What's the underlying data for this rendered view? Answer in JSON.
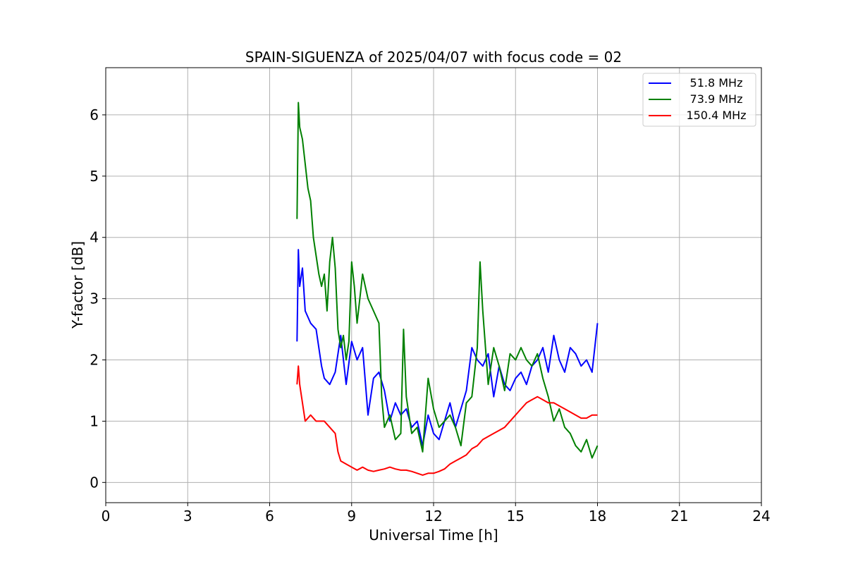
{
  "chart_data": {
    "type": "line",
    "title": "SPAIN-SIGUENZA of 2025/04/07 with focus code = 02",
    "xlabel": "Universal Time [h]",
    "ylabel": "Y-factor [dB]",
    "xlim": [
      0,
      24
    ],
    "ylim": [
      -0.33,
      6.77
    ],
    "xticks": [
      "0",
      "3",
      "6",
      "9",
      "12",
      "15",
      "18",
      "21",
      "24"
    ],
    "yticks": [
      "0",
      "1",
      "2",
      "3",
      "4",
      "5",
      "6"
    ],
    "grid": true,
    "legend_position": "top-right",
    "series": [
      {
        "name": "51.8 MHz",
        "color": "#0000ff",
        "x": [
          7.0,
          7.05,
          7.1,
          7.2,
          7.3,
          7.5,
          7.7,
          7.9,
          8.0,
          8.2,
          8.4,
          8.6,
          8.8,
          9.0,
          9.2,
          9.4,
          9.6,
          9.8,
          10.0,
          10.2,
          10.4,
          10.6,
          10.8,
          11.0,
          11.2,
          11.4,
          11.6,
          11.8,
          12.0,
          12.2,
          12.4,
          12.6,
          12.8,
          13.0,
          13.2,
          13.4,
          13.6,
          13.8,
          14.0,
          14.2,
          14.4,
          14.6,
          14.8,
          15.0,
          15.2,
          15.4,
          15.6,
          15.8,
          16.0,
          16.2,
          16.4,
          16.6,
          16.8,
          17.0,
          17.2,
          17.4,
          17.6,
          17.8,
          18.0
        ],
        "y": [
          2.3,
          3.8,
          3.2,
          3.5,
          2.8,
          2.6,
          2.5,
          1.9,
          1.7,
          1.6,
          1.8,
          2.4,
          1.6,
          2.3,
          2.0,
          2.2,
          1.1,
          1.7,
          1.8,
          1.5,
          1.0,
          1.3,
          1.1,
          1.2,
          0.9,
          1.0,
          0.6,
          1.1,
          0.8,
          0.7,
          1.0,
          1.3,
          0.9,
          1.2,
          1.5,
          2.2,
          2.0,
          1.9,
          2.1,
          1.4,
          1.9,
          1.6,
          1.5,
          1.7,
          1.8,
          1.6,
          1.9,
          2.0,
          2.2,
          1.8,
          2.4,
          2.0,
          1.8,
          2.2,
          2.1,
          1.9,
          2.0,
          1.8,
          2.6
        ]
      },
      {
        "name": "73.9 MHz",
        "color": "#008000",
        "x": [
          7.0,
          7.05,
          7.1,
          7.2,
          7.3,
          7.4,
          7.5,
          7.6,
          7.7,
          7.8,
          7.9,
          8.0,
          8.1,
          8.2,
          8.3,
          8.4,
          8.5,
          8.6,
          8.7,
          8.8,
          8.9,
          9.0,
          9.1,
          9.2,
          9.3,
          9.4,
          9.5,
          9.6,
          9.8,
          10.0,
          10.1,
          10.2,
          10.4,
          10.6,
          10.8,
          10.9,
          11.0,
          11.2,
          11.4,
          11.6,
          11.7,
          11.8,
          12.0,
          12.2,
          12.4,
          12.6,
          12.8,
          13.0,
          13.2,
          13.4,
          13.6,
          13.7,
          13.8,
          14.0,
          14.2,
          14.4,
          14.6,
          14.8,
          15.0,
          15.2,
          15.4,
          15.6,
          15.8,
          16.0,
          16.2,
          16.4,
          16.6,
          16.8,
          17.0,
          17.2,
          17.4,
          17.6,
          17.8,
          18.0
        ],
        "y": [
          4.3,
          6.2,
          5.8,
          5.6,
          5.2,
          4.8,
          4.6,
          4.0,
          3.7,
          3.4,
          3.2,
          3.4,
          2.8,
          3.6,
          4.0,
          3.5,
          2.5,
          2.2,
          2.4,
          2.0,
          2.3,
          3.6,
          3.2,
          2.6,
          3.0,
          3.4,
          3.2,
          3.0,
          2.8,
          2.6,
          1.4,
          0.9,
          1.1,
          0.7,
          0.8,
          2.5,
          1.4,
          0.8,
          0.9,
          0.5,
          1.1,
          1.7,
          1.2,
          0.9,
          1.0,
          1.1,
          0.9,
          0.6,
          1.3,
          1.4,
          2.2,
          3.6,
          2.8,
          1.6,
          2.2,
          1.9,
          1.5,
          2.1,
          2.0,
          2.2,
          2.0,
          1.9,
          2.1,
          1.7,
          1.4,
          1.0,
          1.2,
          0.9,
          0.8,
          0.6,
          0.5,
          0.7,
          0.4,
          0.6
        ]
      },
      {
        "name": "150.4 MHz",
        "color": "#ff0000",
        "x": [
          7.0,
          7.05,
          7.1,
          7.2,
          7.3,
          7.5,
          7.7,
          7.9,
          8.0,
          8.2,
          8.4,
          8.5,
          8.6,
          8.8,
          9.0,
          9.2,
          9.4,
          9.6,
          9.8,
          10.0,
          10.2,
          10.4,
          10.6,
          10.8,
          11.0,
          11.2,
          11.4,
          11.6,
          11.8,
          12.0,
          12.2,
          12.4,
          12.6,
          12.8,
          13.0,
          13.2,
          13.4,
          13.6,
          13.8,
          14.0,
          14.2,
          14.4,
          14.6,
          14.8,
          15.0,
          15.2,
          15.4,
          15.6,
          15.8,
          16.0,
          16.2,
          16.4,
          16.6,
          16.8,
          17.0,
          17.2,
          17.4,
          17.6,
          17.8,
          18.0
        ],
        "y": [
          1.6,
          1.9,
          1.6,
          1.3,
          1.0,
          1.1,
          1.0,
          1.0,
          1.0,
          0.9,
          0.8,
          0.5,
          0.35,
          0.3,
          0.25,
          0.2,
          0.25,
          0.2,
          0.18,
          0.2,
          0.22,
          0.25,
          0.22,
          0.2,
          0.2,
          0.18,
          0.15,
          0.12,
          0.15,
          0.15,
          0.18,
          0.22,
          0.3,
          0.35,
          0.4,
          0.45,
          0.55,
          0.6,
          0.7,
          0.75,
          0.8,
          0.85,
          0.9,
          1.0,
          1.1,
          1.2,
          1.3,
          1.35,
          1.4,
          1.35,
          1.3,
          1.3,
          1.25,
          1.2,
          1.15,
          1.1,
          1.05,
          1.05,
          1.1,
          1.1
        ]
      }
    ]
  }
}
